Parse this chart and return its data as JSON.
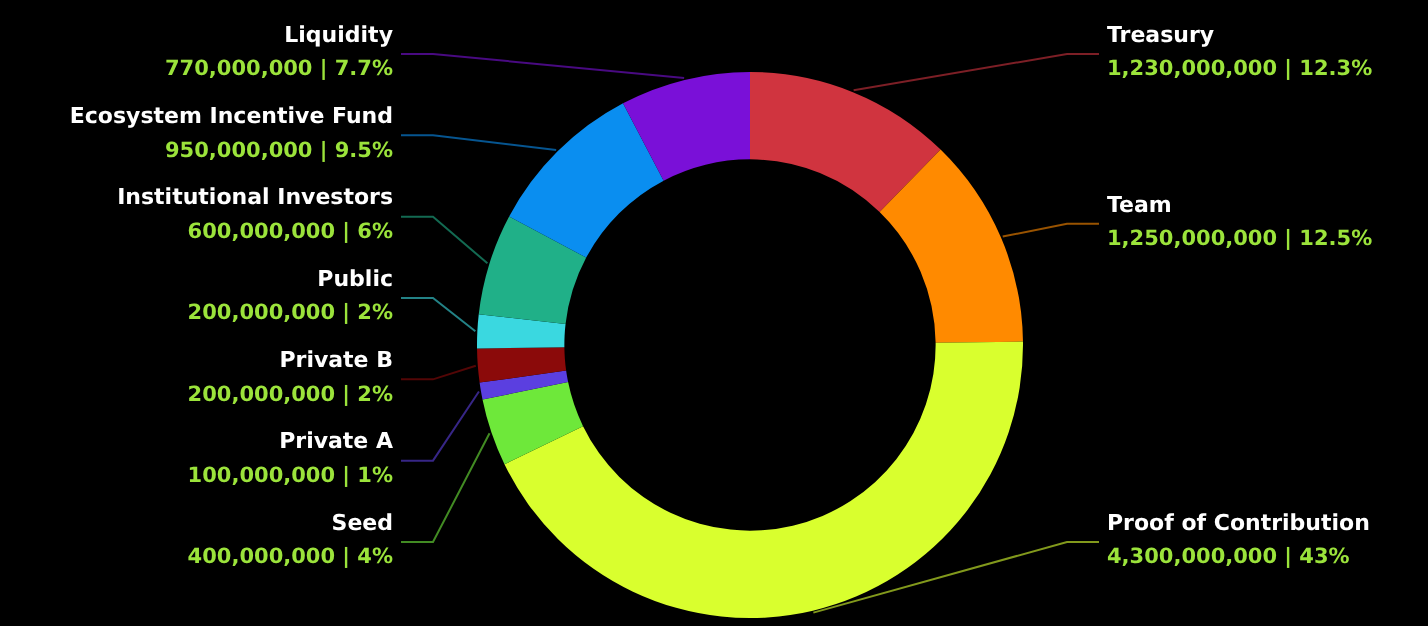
{
  "chart_data": {
    "type": "donut",
    "categories": [
      "Treasury",
      "Team",
      "Proof of Contribution",
      "Seed",
      "Private A",
      "Private B",
      "Public",
      "Institutional Investors",
      "Ecosystem Incentive Fund",
      "Liquidity"
    ],
    "values": [
      1230000000,
      1250000000,
      4300000000,
      400000000,
      100000000,
      200000000,
      200000000,
      600000000,
      950000000,
      770000000
    ],
    "colors": [
      "#d0343f",
      "#ff8a00",
      "#d9ff2e",
      "#6ee83a",
      "#5b3fe0",
      "#8b0a0a",
      "#3ad8e0",
      "#20b088",
      "#0a8ef0",
      "#7a10d8"
    ],
    "value_labels": [
      "1,230,000,000 | 12.3%",
      "1,250,000,000 | 12.5%",
      "4,300,000,000 | 43%",
      "400,000,000 | 4%",
      "100,000,000 | 1%",
      "200,000,000 | 2%",
      "200,000,000 | 2%",
      "600,000,000 | 6%",
      "950,000,000 | 9.5%",
      "770,000,000 | 7.7%"
    ]
  }
}
